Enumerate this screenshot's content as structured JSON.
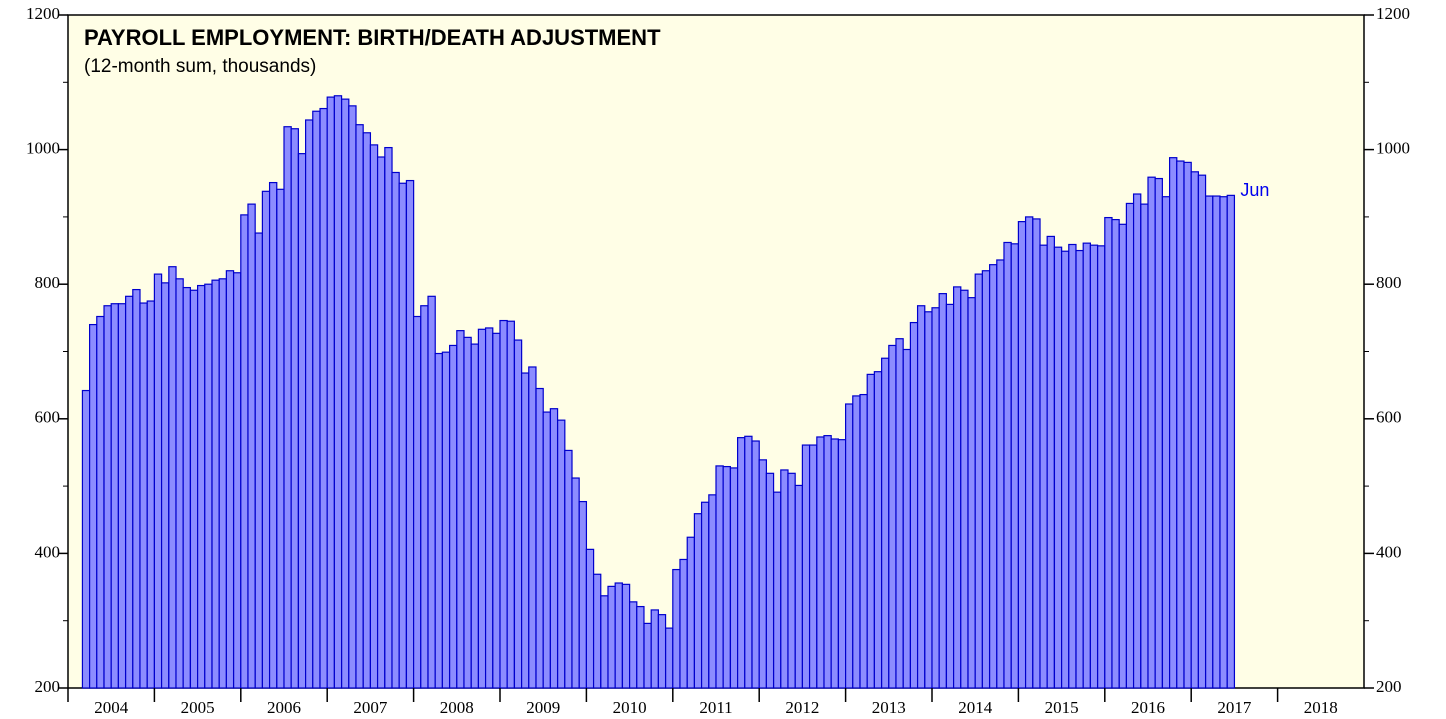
{
  "chart_data": {
    "type": "bar",
    "title": "PAYROLL EMPLOYMENT: BIRTH/DEATH ADJUSTMENT",
    "subtitle": "(12-month sum, thousands)",
    "annotation": "Jun",
    "color": "#8c8cff",
    "edgecolor": "#0000cc",
    "xlim": [
      2004,
      2019
    ],
    "xticks": [
      2004,
      2005,
      2006,
      2007,
      2008,
      2009,
      2010,
      2011,
      2012,
      2013,
      2014,
      2015,
      2016,
      2017,
      2018
    ],
    "ylim": [
      200,
      1200
    ],
    "yticks": [
      200,
      400,
      600,
      800,
      1000,
      1200
    ],
    "yminor_ticks": [
      300,
      500,
      700,
      900,
      1100
    ],
    "x": [
      2004.167,
      2004.25,
      2004.333,
      2004.417,
      2004.5,
      2004.583,
      2004.667,
      2004.75,
      2004.833,
      2004.917,
      2005,
      2005.083,
      2005.167,
      2005.25,
      2005.333,
      2005.417,
      2005.5,
      2005.583,
      2005.667,
      2005.75,
      2005.833,
      2005.917,
      2006,
      2006.083,
      2006.167,
      2006.25,
      2006.333,
      2006.417,
      2006.5,
      2006.583,
      2006.667,
      2006.75,
      2006.833,
      2006.917,
      2007,
      2007.083,
      2007.167,
      2007.25,
      2007.333,
      2007.417,
      2007.5,
      2007.583,
      2007.667,
      2007.75,
      2007.833,
      2007.917,
      2008,
      2008.083,
      2008.167,
      2008.25,
      2008.333,
      2008.417,
      2008.5,
      2008.583,
      2008.667,
      2008.75,
      2008.833,
      2008.917,
      2009,
      2009.083,
      2009.167,
      2009.25,
      2009.333,
      2009.417,
      2009.5,
      2009.583,
      2009.667,
      2009.75,
      2009.833,
      2009.917,
      2010,
      2010.083,
      2010.167,
      2010.25,
      2010.333,
      2010.417,
      2010.5,
      2010.583,
      2010.667,
      2010.75,
      2010.833,
      2010.917,
      2011,
      2011.083,
      2011.167,
      2011.25,
      2011.333,
      2011.417,
      2011.5,
      2011.583,
      2011.667,
      2011.75,
      2011.833,
      2011.917,
      2012,
      2012.083,
      2012.167,
      2012.25,
      2012.333,
      2012.417,
      2012.5,
      2012.583,
      2012.667,
      2012.75,
      2012.833,
      2012.917,
      2013,
      2013.083,
      2013.167,
      2013.25,
      2013.333,
      2013.417,
      2013.5,
      2013.583,
      2013.667,
      2013.75,
      2013.833,
      2013.917,
      2014,
      2014.083,
      2014.167,
      2014.25,
      2014.333,
      2014.417,
      2014.5,
      2014.583,
      2014.667,
      2014.75,
      2014.833,
      2014.917,
      2015,
      2015.083,
      2015.167,
      2015.25,
      2015.333,
      2015.417,
      2015.5,
      2015.583,
      2015.667,
      2015.75,
      2015.833,
      2015.917,
      2016,
      2016.083,
      2016.167,
      2016.25,
      2016.333,
      2016.417,
      2016.5,
      2016.583,
      2016.667,
      2016.75,
      2016.833,
      2016.917,
      2017,
      2017.083,
      2017.167,
      2017.25,
      2017.333,
      2017.417
    ],
    "values": [
      642,
      740,
      752,
      768,
      771,
      771,
      782,
      792,
      772,
      775,
      815,
      802,
      826,
      808,
      795,
      791,
      798,
      800,
      806,
      808,
      820,
      817,
      903,
      919,
      876,
      938,
      951,
      941,
      1034,
      1031,
      994,
      1044,
      1057,
      1061,
      1078,
      1080,
      1075,
      1065,
      1037,
      1025,
      1007,
      989,
      1003,
      966,
      950,
      954,
      752,
      768,
      782,
      697,
      699,
      709,
      731,
      721,
      711,
      733,
      735,
      727,
      746,
      745,
      717,
      668,
      677,
      645,
      610,
      615,
      598,
      553,
      512,
      477,
      406,
      369,
      337,
      351,
      356,
      354,
      328,
      321,
      296,
      316,
      309,
      289,
      376,
      391,
      424,
      459,
      476,
      487,
      530,
      529,
      527,
      572,
      574,
      567,
      539,
      519,
      491,
      524,
      519,
      501,
      561,
      561,
      573,
      575,
      570,
      569,
      622,
      634,
      636,
      666,
      670,
      690,
      709,
      719,
      703,
      743,
      768,
      759,
      765,
      786,
      770,
      796,
      791,
      780,
      815,
      820,
      829,
      836,
      862,
      860,
      893,
      900,
      897,
      858,
      871,
      855,
      849,
      859,
      850,
      861,
      858,
      857,
      899,
      896,
      889,
      920,
      934,
      919,
      959,
      957,
      930,
      988,
      983,
      981,
      967,
      962,
      931,
      931,
      930,
      932
    ]
  }
}
